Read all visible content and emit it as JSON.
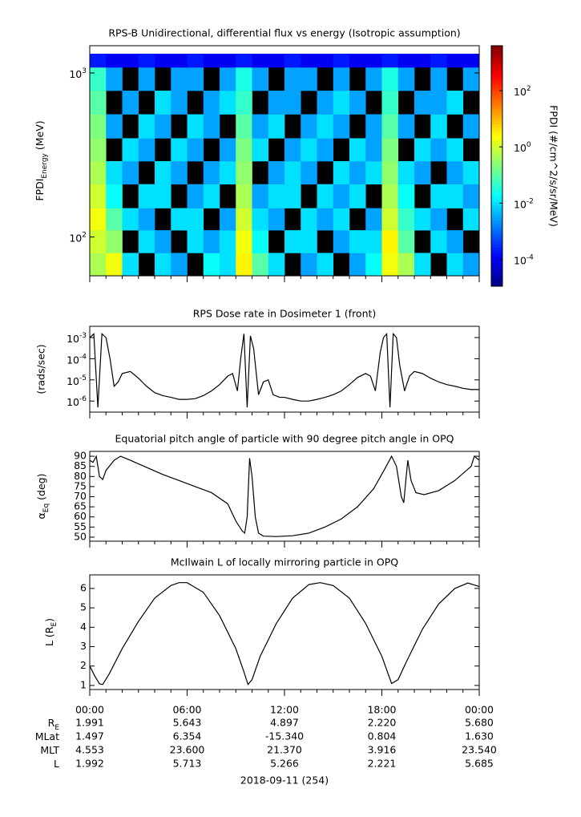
{
  "chart_data": [
    {
      "type": "heatmap",
      "title": "RPS-B  Unidirectional, differential flux vs energy (Isotropic assumption)",
      "ylabel": {
        "main": "FPDI",
        "sub": "Energy",
        "rest": " (MeV)"
      },
      "log_y": true,
      "ylim": [
        58,
        1466
      ],
      "yticks": [
        {
          "value": 100,
          "label": "10",
          "exp": "2"
        },
        {
          "value": 1000,
          "label": "10",
          "exp": "3"
        }
      ],
      "x_edges": [
        0,
        1,
        2,
        3,
        4,
        5,
        6,
        7,
        8,
        9,
        10,
        11,
        12,
        13,
        14,
        15,
        16,
        17,
        18,
        19,
        20,
        21,
        22,
        23,
        24
      ],
      "y_edges": [
        58,
        80,
        110,
        150,
        210,
        290,
        400,
        560,
        780,
        1082,
        1310
      ],
      "z": [
        [
          0.5,
          2,
          0.01,
          null,
          0.01,
          0.003,
          null,
          0.02,
          0.01,
          3,
          0.1,
          0.01,
          null,
          0.003,
          0.01,
          null,
          0.003,
          0.02,
          2,
          0.5,
          0.01,
          null,
          0.01,
          0.003
        ],
        [
          1,
          0.3,
          null,
          0.01,
          0.003,
          null,
          0.01,
          0.003,
          0.01,
          2,
          0.02,
          null,
          0.01,
          0.01,
          null,
          0.003,
          0.01,
          0.01,
          3,
          0.1,
          null,
          0.01,
          0.003,
          null
        ],
        [
          2,
          0.1,
          0.01,
          0.003,
          null,
          0.01,
          0.01,
          null,
          0.003,
          1,
          0.01,
          0.003,
          null,
          0.01,
          0.003,
          0.01,
          null,
          0.003,
          1,
          0.05,
          0.01,
          0.003,
          null,
          0.01
        ],
        [
          1,
          0.02,
          null,
          0.01,
          0.01,
          null,
          0.003,
          0.01,
          null,
          0.5,
          0.003,
          0.01,
          0.01,
          null,
          0.01,
          0.003,
          0.01,
          null,
          0.5,
          0.02,
          null,
          0.01,
          0.01,
          0.003
        ],
        [
          0.5,
          0.01,
          0.003,
          null,
          0.01,
          0.003,
          null,
          0.003,
          0.01,
          0.3,
          null,
          0.003,
          0.01,
          0.003,
          null,
          0.01,
          0.003,
          0.01,
          0.3,
          0.01,
          0.003,
          null,
          0.003,
          0.01
        ],
        [
          0.3,
          null,
          0.01,
          0.003,
          null,
          0.01,
          0.003,
          null,
          0.003,
          0.2,
          0.01,
          null,
          0.003,
          0.01,
          0.003,
          null,
          0.01,
          0.003,
          0.2,
          null,
          0.01,
          0.003,
          0.01,
          null
        ],
        [
          0.2,
          0.003,
          null,
          0.01,
          0.003,
          null,
          0.01,
          0.003,
          null,
          0.1,
          0.003,
          0.01,
          null,
          0.003,
          0.01,
          0.003,
          null,
          0.003,
          0.1,
          0.003,
          null,
          0.01,
          null,
          0.003
        ],
        [
          0.1,
          null,
          0.003,
          null,
          0.01,
          0.003,
          null,
          0.003,
          0.01,
          0.05,
          null,
          0.003,
          0.003,
          null,
          0.003,
          0.01,
          0.003,
          null,
          0.05,
          null,
          0.003,
          0.003,
          0.01,
          null
        ],
        [
          0.05,
          0.003,
          null,
          0.003,
          null,
          0.003,
          0.003,
          null,
          0.003,
          0.03,
          0.003,
          null,
          0.003,
          0.003,
          null,
          0.003,
          null,
          0.003,
          0.03,
          0.003,
          null,
          0.003,
          null,
          0.003
        ],
        [
          0.0002,
          0.0001,
          0.0001,
          0.0002,
          0.0001,
          0.0001,
          0.0002,
          0.0001,
          0.0001,
          0.0002,
          0.0001,
          0.0001,
          0.0002,
          0.0001,
          0.0001,
          0.0002,
          0.0001,
          0.0001,
          0.0002,
          0.0001,
          0.0001,
          0.0002,
          0.0001,
          0.0001
        ]
      ],
      "colorbar": {
        "label": "FPDI (#/cm^2/s/sr/MeV)",
        "colormap": "jet",
        "clim": [
          1.1e-05,
          4000
        ],
        "ticks": [
          {
            "value": 0.0001,
            "label": "10",
            "exp": "-4"
          },
          {
            "value": 0.01,
            "label": "10",
            "exp": "-2"
          },
          {
            "value": 1,
            "label": "10",
            "exp": "0"
          },
          {
            "value": 100,
            "label": "10",
            "exp": "2"
          }
        ]
      }
    },
    {
      "type": "line",
      "title": "RPS  Dose rate in Dosimeter 1 (front)",
      "ylabel": "(rads/sec)",
      "log_y": true,
      "color": "#000000",
      "ylim": [
        3e-07,
        0.0034
      ],
      "yticks": [
        {
          "value": 1e-06,
          "label": "10",
          "exp": "-6"
        },
        {
          "value": 1e-05,
          "label": "10",
          "exp": "-5"
        },
        {
          "value": 0.0001,
          "label": "10",
          "exp": "-4"
        },
        {
          "value": 0.001,
          "label": "10",
          "exp": "-3"
        }
      ],
      "x": [
        0,
        0.25,
        0.5,
        0.75,
        1,
        1.25,
        1.5,
        1.75,
        2,
        2.5,
        3,
        3.5,
        4,
        4.5,
        5,
        5.5,
        6,
        6.5,
        7,
        7.5,
        8,
        8.5,
        8.8,
        9.1,
        9.3,
        9.5,
        9.7,
        9.9,
        10.1,
        10.4,
        10.7,
        11,
        11.3,
        11.7,
        12,
        12.5,
        13,
        13.5,
        14,
        14.5,
        15,
        15.5,
        16,
        16.5,
        17,
        17.3,
        17.6,
        17.9,
        18.1,
        18.3,
        18.5,
        18.7,
        18.9,
        19.1,
        19.4,
        19.7,
        20,
        20.5,
        21,
        21.5,
        22,
        22.5,
        23,
        23.5,
        24
      ],
      "values": [
        0.001,
        0.0015,
        5e-07,
        0.0015,
        0.001,
        0.0001,
        5e-06,
        8e-06,
        2e-05,
        2.5e-05,
        1.2e-05,
        5e-06,
        2.5e-06,
        1.8e-06,
        1.5e-06,
        1.2e-06,
        1.2e-06,
        1.3e-06,
        1.8e-06,
        3e-06,
        6e-06,
        1.5e-05,
        2e-05,
        3e-06,
        0.0001,
        0.0015,
        5e-07,
        0.0012,
        0.0003,
        2e-06,
        8e-06,
        1e-05,
        2e-06,
        1.5e-06,
        1.5e-06,
        1.2e-06,
        1e-06,
        1e-06,
        1.2e-06,
        1.5e-06,
        2e-06,
        3e-06,
        6e-06,
        1.3e-05,
        2e-05,
        1.5e-05,
        3e-06,
        0.0002,
        0.001,
        0.0015,
        5e-07,
        0.0015,
        0.001,
        5e-05,
        3e-06,
        1.5e-05,
        2.5e-05,
        2e-05,
        1.2e-05,
        8e-06,
        6e-06,
        5e-06,
        4e-06,
        3.5e-06,
        3.5e-06
      ]
    },
    {
      "type": "line",
      "title": "Equatorial pitch angle of particle with 90 degree pitch angle in OPQ",
      "ylabel": {
        "main": "α",
        "sub": "Eq",
        "rest": " (deg)"
      },
      "color": "#000000",
      "ylim": [
        48,
        92.4
      ],
      "yticks": [
        50,
        55,
        60,
        65,
        70,
        75,
        80,
        85,
        90
      ],
      "x": [
        0,
        0.2,
        0.4,
        0.6,
        0.8,
        1.0,
        1.5,
        1.9,
        2.5,
        3.5,
        4.5,
        5.5,
        6.5,
        7.5,
        8.5,
        9.0,
        9.4,
        9.55,
        9.7,
        9.85,
        10.0,
        10.2,
        10.4,
        10.7,
        11.5,
        12.5,
        13.5,
        14.5,
        15.5,
        16.5,
        17.5,
        18.2,
        18.6,
        18.9,
        19.2,
        19.35,
        19.5,
        19.6,
        19.8,
        20.1,
        20.6,
        21.5,
        22.5,
        23.5,
        23.7,
        24
      ],
      "values": [
        88,
        87,
        90,
        80,
        78.5,
        83,
        88,
        90,
        88,
        84.5,
        81,
        78,
        75,
        72,
        66.5,
        58,
        53,
        52,
        60,
        89,
        80,
        60,
        52,
        50.5,
        50.3,
        50.7,
        52,
        55,
        59,
        65,
        74,
        84,
        90,
        85,
        70,
        67,
        80,
        88,
        78,
        72,
        71,
        73,
        78,
        85,
        90,
        88
      ]
    },
    {
      "type": "line",
      "title": "McIlwain L of locally mirroring particle in OPQ",
      "ylabel": {
        "main": "L (R",
        "sub": "E",
        "rest": ")"
      },
      "color": "#000000",
      "ylim": [
        0.79,
        6.7
      ],
      "yticks": [
        1,
        2,
        3,
        4,
        5,
        6
      ],
      "x": [
        0,
        0.3,
        0.6,
        0.8,
        1.2,
        2,
        3,
        4,
        5,
        5.5,
        6,
        7,
        8,
        9,
        9.5,
        9.75,
        10,
        10.5,
        11.5,
        12.5,
        13.5,
        14.2,
        15,
        16,
        17,
        18,
        18.6,
        19,
        19.5,
        20.5,
        21.5,
        22.5,
        23.3,
        24
      ],
      "values": [
        2.0,
        1.5,
        1.08,
        1.05,
        1.6,
        2.9,
        4.3,
        5.5,
        6.15,
        6.3,
        6.3,
        5.8,
        4.6,
        2.9,
        1.7,
        1.05,
        1.3,
        2.5,
        4.2,
        5.5,
        6.2,
        6.3,
        6.15,
        5.5,
        4.2,
        2.5,
        1.1,
        1.3,
        2.2,
        3.9,
        5.2,
        6.0,
        6.28,
        6.1
      ]
    }
  ],
  "time_axis": {
    "xlim": [
      0,
      24
    ],
    "xminor_step": 1,
    "xticks": [
      {
        "value": 0,
        "label": "00:00"
      },
      {
        "value": 6,
        "label": "06:00"
      },
      {
        "value": 12,
        "label": "12:00"
      },
      {
        "value": 18,
        "label": "18:00"
      },
      {
        "value": 24,
        "label": "00:00"
      }
    ],
    "xlabel": "2018-09-11 (254)"
  },
  "ephemeris": {
    "rows": [
      {
        "label": "R",
        "sub": "E",
        "values": [
          "1.991",
          "5.643",
          "4.897",
          "2.220",
          "5.680"
        ]
      },
      {
        "label": "MLat",
        "values": [
          "1.497",
          "6.354",
          "-15.340",
          "0.804",
          "1.630"
        ]
      },
      {
        "label": "MLT",
        "values": [
          "4.553",
          "23.600",
          "21.370",
          "3.916",
          "23.540"
        ]
      },
      {
        "label": "L",
        "values": [
          "1.992",
          "5.713",
          "5.266",
          "2.221",
          "5.685"
        ]
      }
    ]
  }
}
